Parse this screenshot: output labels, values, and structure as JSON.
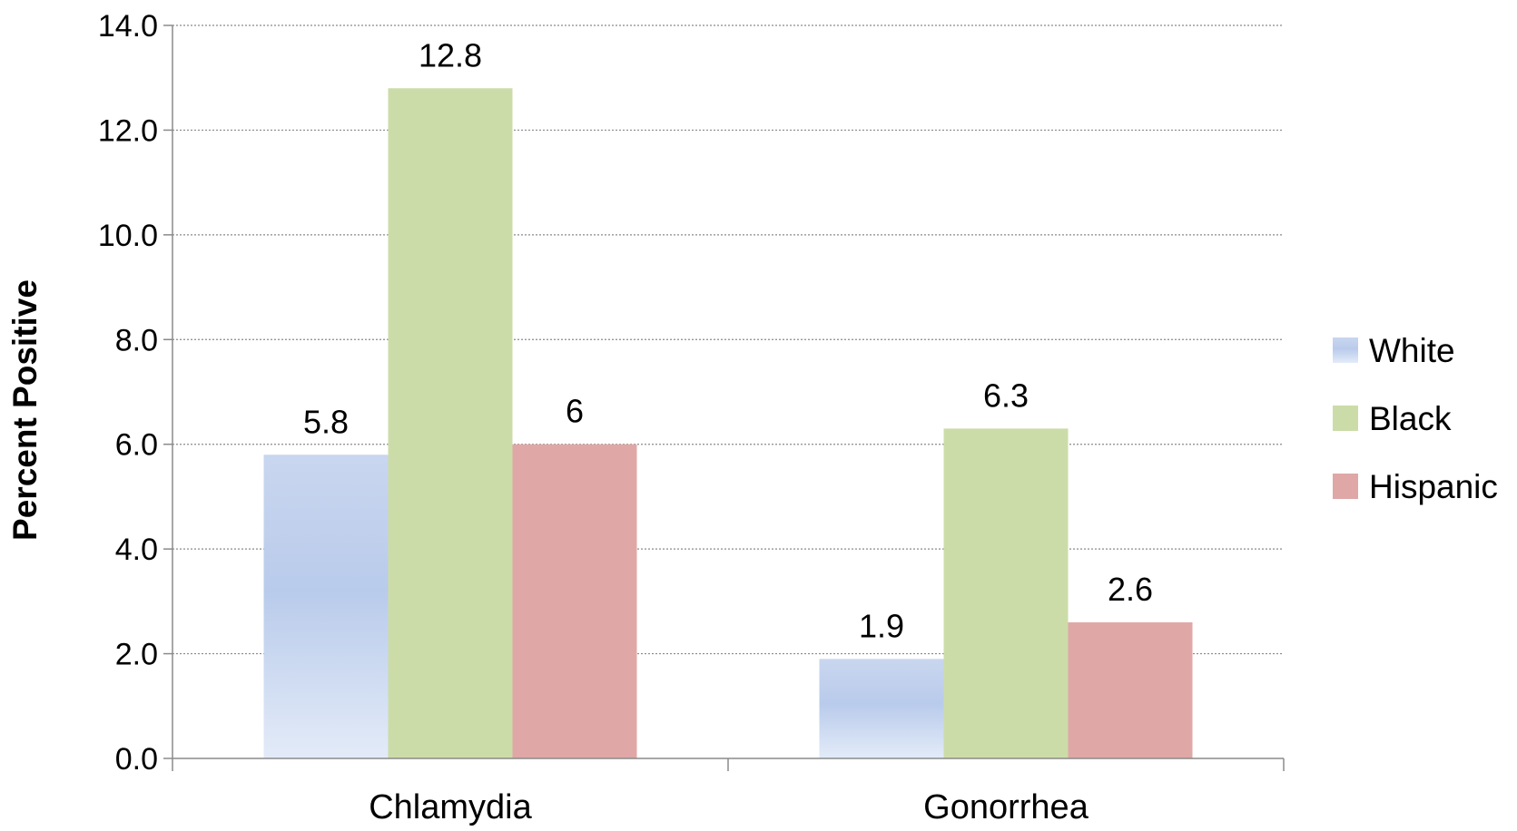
{
  "chart_data": {
    "type": "bar",
    "title": "",
    "xlabel": "",
    "ylabel": "Percent Positive",
    "categories": [
      "Chlamydia",
      "Gonorrhea"
    ],
    "series": [
      {
        "name": "White",
        "values": [
          5.8,
          1.9
        ],
        "labels": [
          "5.8",
          "1.9"
        ],
        "color": "#b4c7e7"
      },
      {
        "name": "Black",
        "values": [
          12.8,
          6.3
        ],
        "labels": [
          "12.8",
          "6.3"
        ],
        "color": "#ccdca8"
      },
      {
        "name": "Hispanic",
        "values": [
          6,
          2.6
        ],
        "labels": [
          "6",
          "2.6"
        ],
        "color": "#e0a7a7"
      }
    ],
    "ylim": [
      0,
      14
    ],
    "yticks": [
      "0.0",
      "2.0",
      "4.0",
      "6.0",
      "8.0",
      "10.0",
      "12.0",
      "14.0"
    ],
    "grid": true,
    "legend_position": "right"
  }
}
